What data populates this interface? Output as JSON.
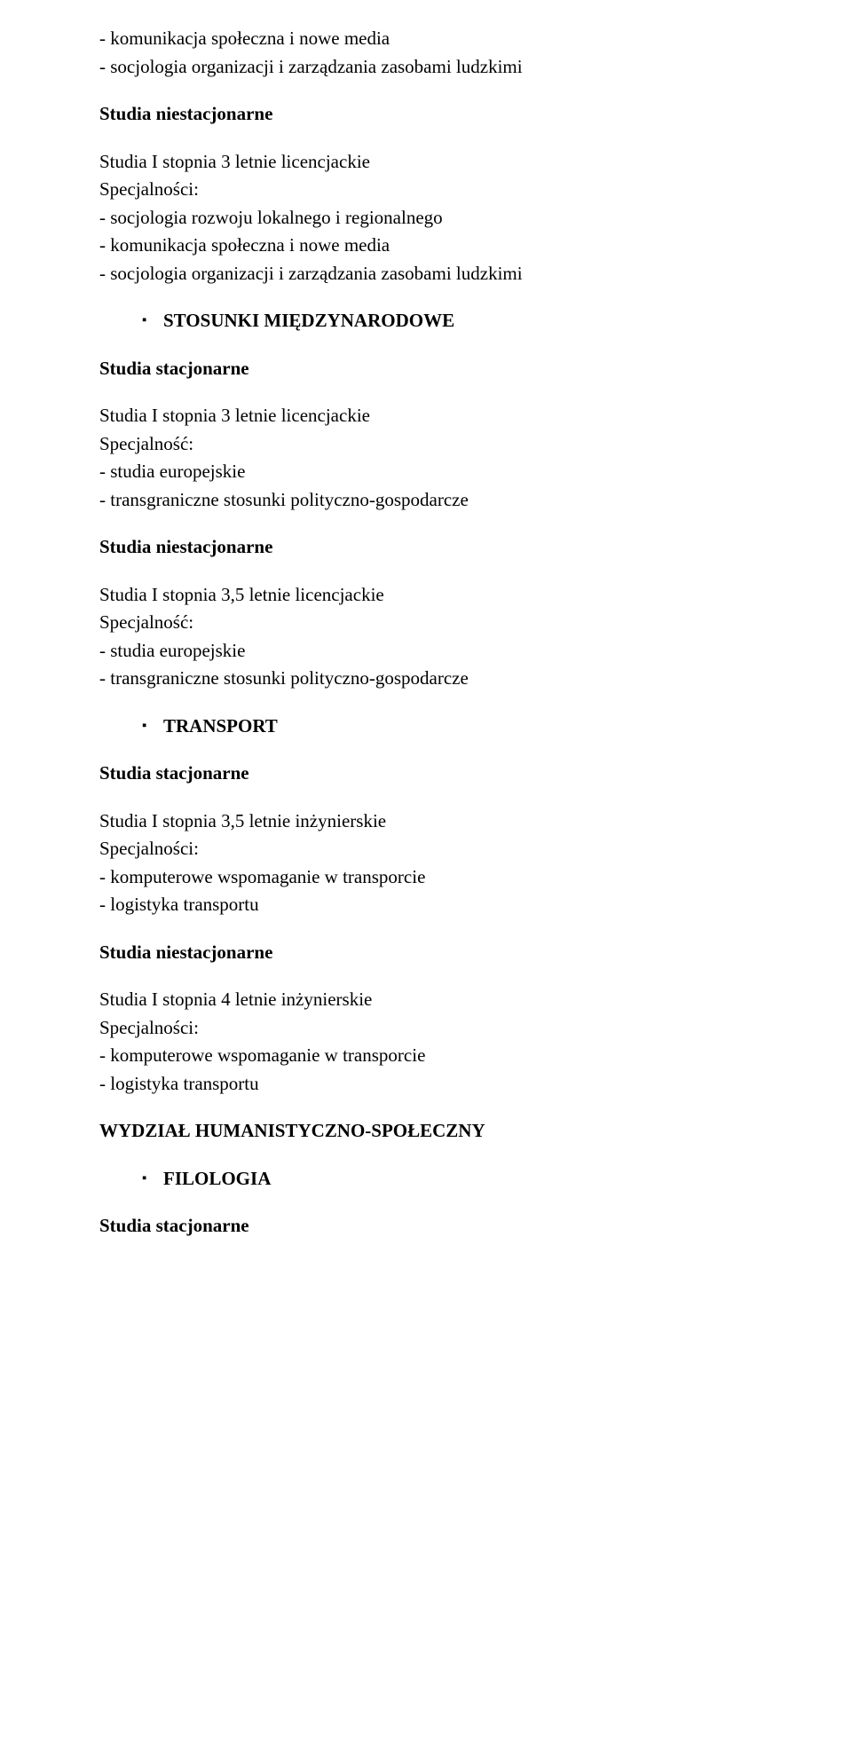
{
  "group1": {
    "lines": [
      "- komunikacja społeczna i nowe media",
      "- socjologia organizacji i zarządzania zasobami ludzkimi"
    ]
  },
  "h1": "Studia niestacjonarne",
  "group2": {
    "lines": [
      "Studia I stopnia 3 letnie licencjackie",
      "Specjalności:",
      "- socjologia rozwoju lokalnego i regionalnego",
      "- komunikacja społeczna i nowe media",
      "- socjologia organizacji i zarządzania zasobami ludzkimi"
    ]
  },
  "section1": {
    "bullet": "▪",
    "label": "STOSUNKI MIĘDZYNARODOWE"
  },
  "h2": "Studia stacjonarne",
  "group3": {
    "lines": [
      "Studia I stopnia 3 letnie licencjackie",
      "Specjalność:",
      "- studia europejskie",
      "- transgraniczne stosunki polityczno-gospodarcze"
    ]
  },
  "h3": "Studia niestacjonarne",
  "group4": {
    "lines": [
      "Studia I stopnia 3,5 letnie licencjackie",
      "Specjalność:",
      "- studia europejskie",
      "- transgraniczne stosunki polityczno-gospodarcze"
    ]
  },
  "section2": {
    "bullet": "▪",
    "label": "TRANSPORT"
  },
  "h4": "Studia stacjonarne",
  "group5": {
    "lines": [
      "Studia I stopnia 3,5 letnie inżynierskie",
      "Specjalności:",
      "- komputerowe wspomaganie w transporcie",
      "- logistyka transportu"
    ]
  },
  "h5": "Studia niestacjonarne",
  "group6": {
    "lines": [
      "Studia I stopnia 4 letnie inżynierskie",
      "Specjalności:",
      "- komputerowe wspomaganie w transporcie",
      "- logistyka transportu"
    ]
  },
  "h6": "WYDZIAŁ HUMANISTYCZNO-SPOŁECZNY",
  "section3": {
    "bullet": "▪",
    "label": "FILOLOGIA"
  },
  "h7": "Studia stacjonarne"
}
